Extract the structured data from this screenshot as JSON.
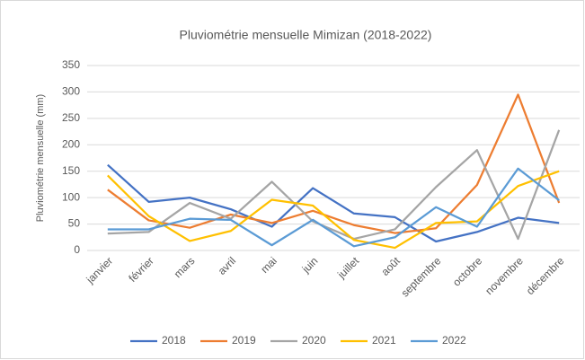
{
  "chart_data": {
    "type": "line",
    "title": "Pluviométrie mensuelle Mimizan (2018-2022)",
    "y_label": "Pluviométrie mensuelle (mm)",
    "categories": [
      "janvier",
      "février",
      "mars",
      "avril",
      "mai",
      "juin",
      "juillet",
      "août",
      "septembre",
      "octobre",
      "novembre",
      "décembre"
    ],
    "series": [
      {
        "name": "2018",
        "color": "#4472c4",
        "values": [
          162,
          92,
          100,
          78,
          45,
          118,
          70,
          63,
          17,
          35,
          62,
          52
        ]
      },
      {
        "name": "2019",
        "color": "#ed7d31",
        "values": [
          115,
          57,
          43,
          68,
          52,
          75,
          48,
          33,
          42,
          124,
          295,
          90
        ]
      },
      {
        "name": "2020",
        "color": "#a5a5a5",
        "values": [
          32,
          35,
          90,
          60,
          130,
          55,
          22,
          40,
          120,
          190,
          22,
          228
        ]
      },
      {
        "name": "2021",
        "color": "#ffc000",
        "values": [
          142,
          65,
          18,
          37,
          96,
          85,
          20,
          5,
          52,
          55,
          122,
          150
        ]
      },
      {
        "name": "2022",
        "color": "#5b9bd5",
        "values": [
          40,
          40,
          60,
          58,
          10,
          58,
          8,
          25,
          82,
          45,
          155,
          95
        ]
      }
    ],
    "ylim": [
      0,
      350
    ],
    "yticks": [
      0,
      50,
      100,
      150,
      200,
      250,
      300,
      350
    ],
    "grid": true,
    "legend": "bottom"
  }
}
